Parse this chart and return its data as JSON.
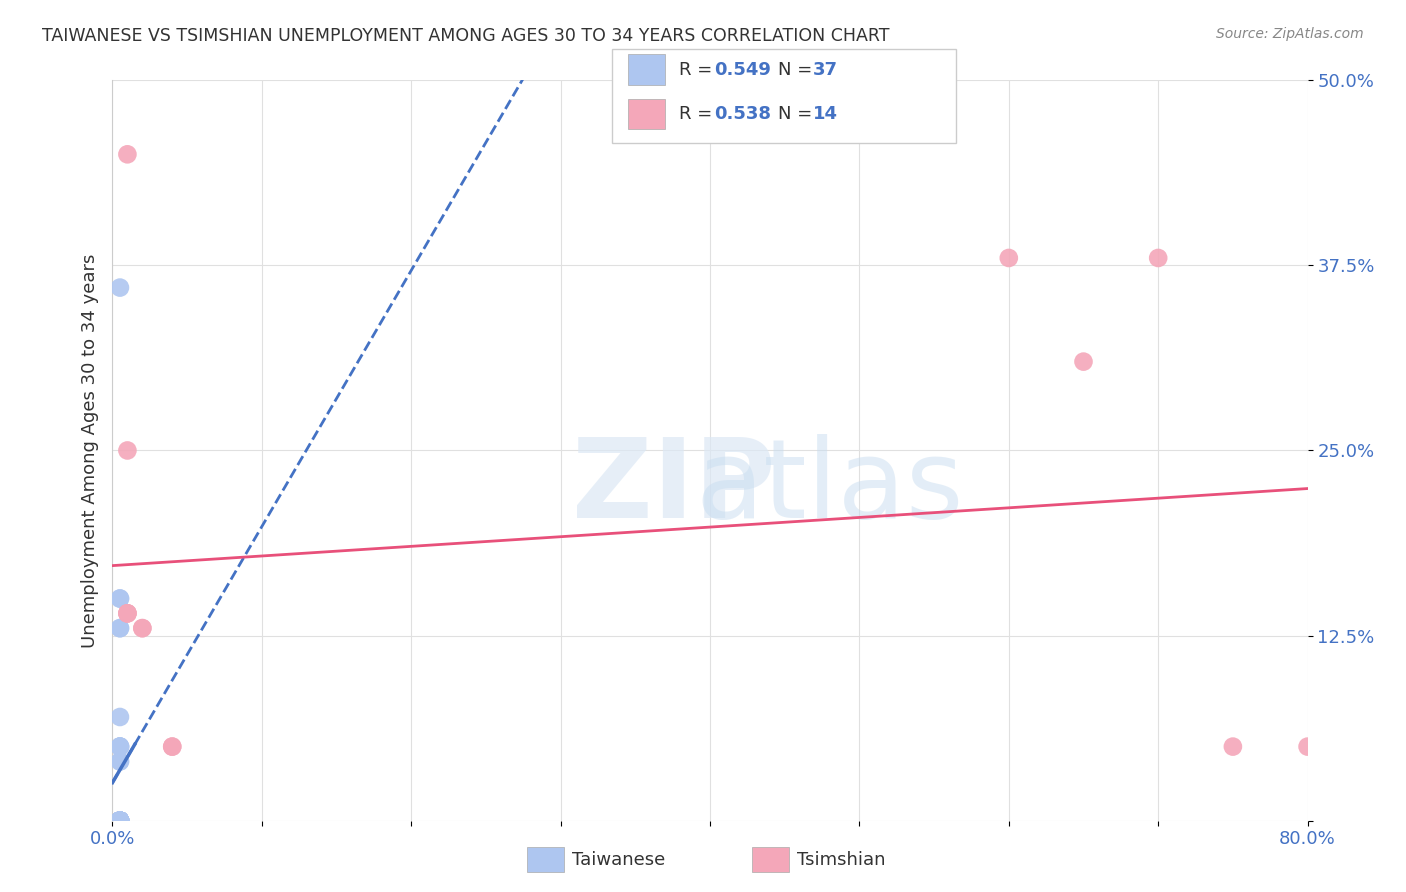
{
  "title": "TAIWANESE VS TSIMSHIAN UNEMPLOYMENT AMONG AGES 30 TO 34 YEARS CORRELATION CHART",
  "source": "Source: ZipAtlas.com",
  "ylabel": "Unemployment Among Ages 30 to 34 years",
  "xlim": [
    0.0,
    0.8
  ],
  "ylim": [
    0.0,
    0.5
  ],
  "xticks": [
    0.0,
    0.1,
    0.2,
    0.3,
    0.4,
    0.5,
    0.6,
    0.7,
    0.8
  ],
  "xticklabels": [
    "0.0%",
    "",
    "",
    "",
    "",
    "",
    "",
    "",
    "80.0%"
  ],
  "yticks": [
    0.0,
    0.125,
    0.25,
    0.375,
    0.5
  ],
  "yticklabels": [
    "",
    "12.5%",
    "25.0%",
    "37.5%",
    "50.0%"
  ],
  "taiwanese_x": [
    0.005,
    0.005,
    0.005,
    0.005,
    0.005,
    0.005,
    0.005,
    0.005,
    0.005,
    0.005,
    0.005,
    0.005,
    0.005,
    0.005,
    0.005,
    0.005,
    0.005,
    0.005,
    0.005,
    0.005,
    0.005,
    0.005,
    0.005,
    0.005,
    0.005,
    0.005,
    0.005,
    0.005,
    0.005,
    0.005,
    0.005,
    0.005,
    0.005,
    0.005,
    0.005,
    0.005,
    0.005
  ],
  "taiwanese_y": [
    0.36,
    0.0,
    0.0,
    0.0,
    0.0,
    0.0,
    0.0,
    0.0,
    0.0,
    0.0,
    0.0,
    0.0,
    0.0,
    0.0,
    0.0,
    0.0,
    0.0,
    0.0,
    0.0,
    0.0,
    0.0,
    0.0,
    0.0,
    0.0,
    0.0,
    0.0,
    0.07,
    0.04,
    0.04,
    0.13,
    0.13,
    0.15,
    0.15,
    0.05,
    0.05,
    0.05,
    0.05
  ],
  "tsimshian_x": [
    0.01,
    0.01,
    0.01,
    0.01,
    0.01,
    0.02,
    0.02,
    0.04,
    0.04,
    0.6,
    0.65,
    0.7,
    0.75,
    0.8
  ],
  "tsimshian_y": [
    0.45,
    0.14,
    0.14,
    0.14,
    0.25,
    0.13,
    0.13,
    0.05,
    0.05,
    0.38,
    0.31,
    0.38,
    0.05,
    0.05
  ],
  "R_taiwanese": 0.549,
  "N_taiwanese": 37,
  "R_tsimshian": 0.538,
  "N_tsimshian": 14,
  "taiwanese_color": "#aec6f0",
  "tsimshian_color": "#f4a7b9",
  "taiwanese_line_color": "#4472c4",
  "tsimshian_line_color": "#e8507a",
  "legend_color": "#4472c4",
  "background_color": "#ffffff",
  "grid_color": "#e0e0e0"
}
